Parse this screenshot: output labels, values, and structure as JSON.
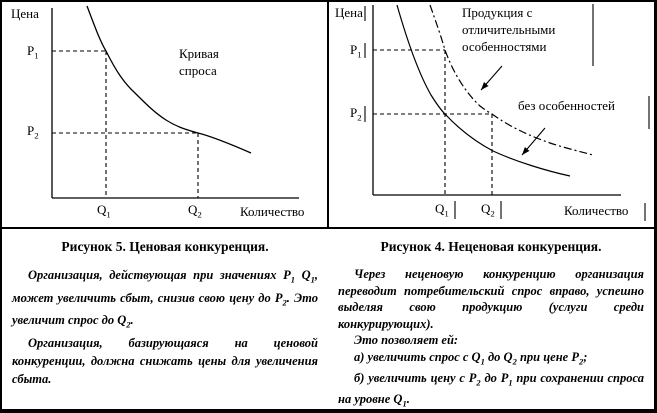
{
  "figure_price": {
    "caption": "Рисунок 5. Ценовая конкуренция.",
    "chart": {
      "y_axis_label": "Цена",
      "x_axis_label": "Количество",
      "curve_label": "Кривая\nспроса",
      "p1": "P_1",
      "p2": "P_2",
      "q1": "Q_1",
      "q2": "Q_2"
    },
    "paragraphs": [
      "Организация, действующая при значениях P_1 Q_1, может увеличить сбыт, снизив свою цену до P_2. Это увеличит спрос до Q_2.",
      "Организация, базирующаяся на ценовой конкуренции, должна снижать цены для увеличения сбыта."
    ]
  },
  "figure_nonprice": {
    "caption": "Рисунок 4. Неценовая конкуренция.",
    "chart": {
      "y_axis_label": "Цена",
      "x_axis_label": "Количество",
      "curve1_label": "Продукция с\nотличительными\nособенностями",
      "curve2_label": "без особенностей",
      "p1": "P_1",
      "p2": "P_2",
      "q1": "Q_1",
      "q2": "Q_2"
    },
    "paragraphs": [
      "Через неценовую конкуренцию организация переводит потребительский спрос вправо, успешно выделяя свою продукцию (услуги среди конкурирующих).",
      "Это позволяет ей:",
      "а) увеличить спрос с Q_1 до Q_2 при цене P_2;",
      "б) увеличить цену с P_2 до P_1 при сохранении спроса на уровне Q_1."
    ]
  },
  "colors": {
    "ink": "#000000",
    "paper": "#ffffff"
  }
}
